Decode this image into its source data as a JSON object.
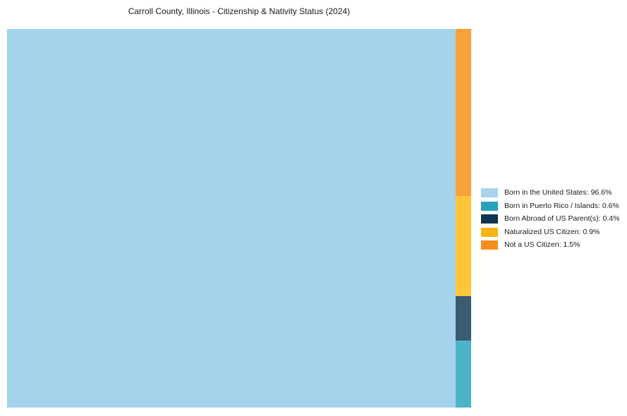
{
  "page": {
    "background": "#ffffff"
  },
  "chart_data": {
    "type": "treemap",
    "title": "Carroll County, Illinois - Citizenship & Nativity Status (2024)",
    "unit": "%",
    "total": 100,
    "grid": false,
    "legend_position": "right",
    "items": [
      {
        "label": "Born in the United States",
        "value": 96.6,
        "fill": "#A5D3EB",
        "legend_color": "#A6D3EB",
        "legend_text": "Born in the United States: 96.6%"
      },
      {
        "label": "Born in Puerto Rico / Islands",
        "value": 0.6,
        "fill": "#4DB4C8",
        "legend_color": "#29A0BE",
        "legend_text": "Born in Puerto Rico / Islands: 0.6%"
      },
      {
        "label": "Born Abroad of US Parent(s)",
        "value": 0.4,
        "fill": "#3A5B71",
        "legend_color": "#113450",
        "legend_text": "Born Abroad of US Parent(s): 0.4%"
      },
      {
        "label": "Naturalized US Citizen",
        "value": 0.9,
        "fill": "#FDC63B",
        "legend_color": "#FCB316",
        "legend_text": "Naturalized US Citizen: 0.9%"
      },
      {
        "label": "Not a US Citizen",
        "value": 1.5,
        "fill": "#F9A23C",
        "legend_color": "#F78C1E",
        "legend_text": "Not a US Citizen: 1.5%"
      }
    ],
    "layout": {
      "main_item": "Born in the United States",
      "right_stack_top_to_bottom": [
        "Not a US Citizen",
        "Naturalized US Citizen",
        "Born Abroad of US Parent(s)",
        "Born in Puerto Rico / Islands"
      ]
    }
  }
}
